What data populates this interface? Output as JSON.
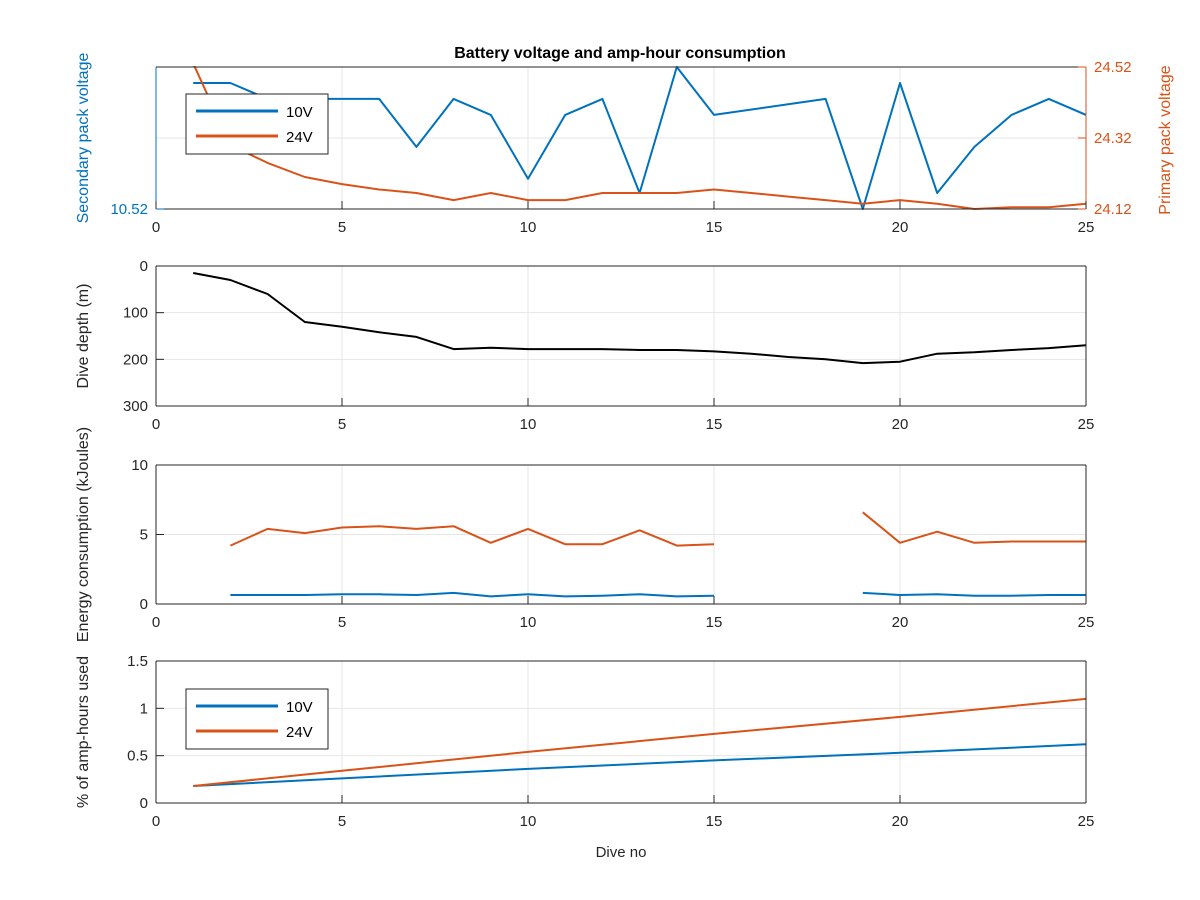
{
  "title": "Battery voltage and amp-hour consumption",
  "colors": {
    "blue": "#0072BD",
    "orange": "#D95319",
    "black": "#000000",
    "grid": "#e6e6e6",
    "axis": "#262626"
  },
  "chart_data": [
    {
      "type": "line",
      "title": "Battery voltage and amp-hour consumption",
      "xlabel": "",
      "ylabel_left": "Secondary pack voltage",
      "ylabel_right": "Primary pack voltage",
      "xlim": [
        0,
        25
      ],
      "xticks": [
        0,
        5,
        10,
        15,
        20,
        25
      ],
      "ylim_left": [
        10.52,
        10.6
      ],
      "yticks_left": [
        10.52
      ],
      "ylim_right": [
        24.12,
        24.52
      ],
      "yticks_right": [
        24.12,
        24.32,
        24.52
      ],
      "grid": true,
      "legend": {
        "position": "top-left",
        "entries": [
          "10V",
          "24V"
        ]
      },
      "series": [
        {
          "name": "10V",
          "axis": "left",
          "x": [
            1,
            2,
            3,
            4,
            5,
            6,
            7,
            8,
            9,
            10,
            11,
            12,
            13,
            14,
            15,
            18,
            19,
            20,
            21,
            22,
            23,
            24,
            25
          ],
          "y": [
            10.591,
            10.591,
            10.582,
            10.582,
            10.582,
            10.582,
            10.555,
            10.582,
            10.573,
            10.537,
            10.573,
            10.582,
            10.529,
            10.6,
            10.573,
            10.582,
            10.52,
            10.591,
            10.529,
            10.555,
            10.573,
            10.582,
            10.573
          ]
        },
        {
          "name": "24V",
          "axis": "right",
          "x": [
            1,
            2,
            3,
            4,
            5,
            6,
            7,
            8,
            9,
            10,
            11,
            12,
            13,
            14,
            15,
            16,
            17,
            18,
            19,
            20,
            21,
            22,
            23,
            24,
            25
          ],
          "y": [
            24.53,
            24.3,
            24.25,
            24.21,
            24.19,
            24.175,
            24.165,
            24.145,
            24.165,
            24.145,
            24.145,
            24.165,
            24.165,
            24.165,
            24.175,
            24.165,
            24.155,
            24.145,
            24.135,
            24.145,
            24.135,
            24.12,
            24.125,
            24.125,
            24.135
          ]
        }
      ]
    },
    {
      "type": "line",
      "ylabel": "Dive depth (m)",
      "xlim": [
        0,
        25
      ],
      "xticks": [
        0,
        5,
        10,
        15,
        20,
        25
      ],
      "ylim": [
        0,
        300
      ],
      "yreverse": true,
      "yticks": [
        0,
        100,
        200,
        300
      ],
      "grid": true,
      "series": [
        {
          "name": "",
          "x": [
            1,
            2,
            3,
            4,
            5,
            6,
            7,
            8,
            9,
            10,
            11,
            12,
            13,
            14,
            15,
            16,
            17,
            18,
            19,
            20,
            21,
            22,
            23,
            24,
            25
          ],
          "y": [
            15,
            30,
            60,
            120,
            130,
            142,
            152,
            178,
            175,
            178,
            178,
            178,
            180,
            180,
            183,
            188,
            195,
            200,
            208,
            205,
            188,
            185,
            180,
            176,
            170
          ]
        }
      ]
    },
    {
      "type": "line",
      "ylabel": "Energy consumption (kJoules)",
      "xlim": [
        0,
        25
      ],
      "xticks": [
        0,
        5,
        10,
        15,
        20,
        25
      ],
      "ylim": [
        0,
        10
      ],
      "yticks": [
        0,
        5,
        10
      ],
      "grid": true,
      "series": [
        {
          "name": "24V",
          "segments": [
            {
              "x": [
                2,
                3,
                4,
                5,
                6,
                7,
                8,
                9,
                10,
                11,
                12,
                13,
                14,
                15
              ],
              "y": [
                4.2,
                5.4,
                5.1,
                5.5,
                5.6,
                5.4,
                5.6,
                4.4,
                5.4,
                4.3,
                4.3,
                5.3,
                4.2,
                4.3
              ]
            },
            {
              "x": [
                19,
                20,
                21,
                22,
                23,
                24,
                25
              ],
              "y": [
                6.6,
                4.4,
                5.2,
                4.4,
                4.5,
                4.5,
                4.5
              ]
            }
          ]
        },
        {
          "name": "10V",
          "segments": [
            {
              "x": [
                2,
                3,
                4,
                5,
                6,
                7,
                8,
                9,
                10,
                11,
                12,
                13,
                14,
                15
              ],
              "y": [
                0.65,
                0.65,
                0.65,
                0.7,
                0.7,
                0.65,
                0.8,
                0.55,
                0.7,
                0.55,
                0.6,
                0.7,
                0.55,
                0.6
              ]
            },
            {
              "x": [
                19,
                20,
                21,
                22,
                23,
                24,
                25
              ],
              "y": [
                0.8,
                0.65,
                0.7,
                0.6,
                0.6,
                0.65,
                0.65
              ]
            }
          ]
        }
      ]
    },
    {
      "type": "line",
      "xlabel": "Dive no",
      "ylabel": "% of amp-hours used",
      "xlim": [
        0,
        25
      ],
      "xticks": [
        0,
        5,
        10,
        15,
        20,
        25
      ],
      "ylim": [
        0,
        1.5
      ],
      "yticks": [
        0,
        0.5,
        1,
        1.5
      ],
      "grid": true,
      "legend": {
        "position": "lower-left",
        "entries": [
          "10V",
          "24V"
        ]
      },
      "series": [
        {
          "name": "10V",
          "x": [
            1,
            5,
            10,
            15,
            20,
            25
          ],
          "y": [
            0.18,
            0.26,
            0.36,
            0.45,
            0.53,
            0.62
          ]
        },
        {
          "name": "24V",
          "x": [
            1,
            5,
            10,
            15,
            20,
            25
          ],
          "y": [
            0.18,
            0.34,
            0.54,
            0.73,
            0.91,
            1.1
          ]
        }
      ]
    }
  ]
}
